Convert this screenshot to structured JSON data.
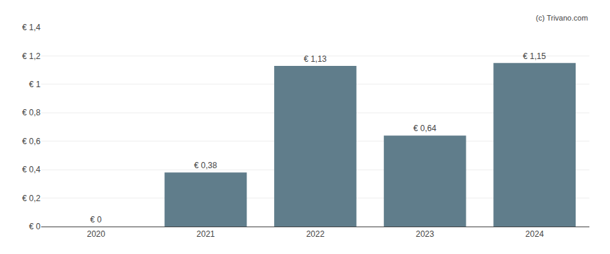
{
  "chart_data": {
    "type": "bar",
    "categories": [
      "2020",
      "2021",
      "2022",
      "2023",
      "2024"
    ],
    "values": [
      0,
      0.38,
      1.13,
      0.64,
      1.15
    ],
    "value_labels": [
      "€ 0",
      "€ 0,38",
      "€ 1,13",
      "€ 0,64",
      "€ 1,15"
    ],
    "data_labels": true,
    "color": "#607d8b",
    "ylim": [
      0,
      1.4
    ],
    "yticks": [
      {
        "value": 0,
        "label": "€ 0"
      },
      {
        "value": 0.2,
        "label": "€ 0,2"
      },
      {
        "value": 0.4,
        "label": "€ 0,4"
      },
      {
        "value": 0.6,
        "label": "€ 0,6"
      },
      {
        "value": 0.8,
        "label": "€ 0,8"
      },
      {
        "value": 1.0,
        "label": "€ 1"
      },
      {
        "value": 1.2,
        "label": "€ 1,2"
      },
      {
        "value": 1.4,
        "label": "€ 1,4"
      }
    ],
    "grid": true,
    "annotations": [
      "(c) Trivano.com"
    ]
  }
}
